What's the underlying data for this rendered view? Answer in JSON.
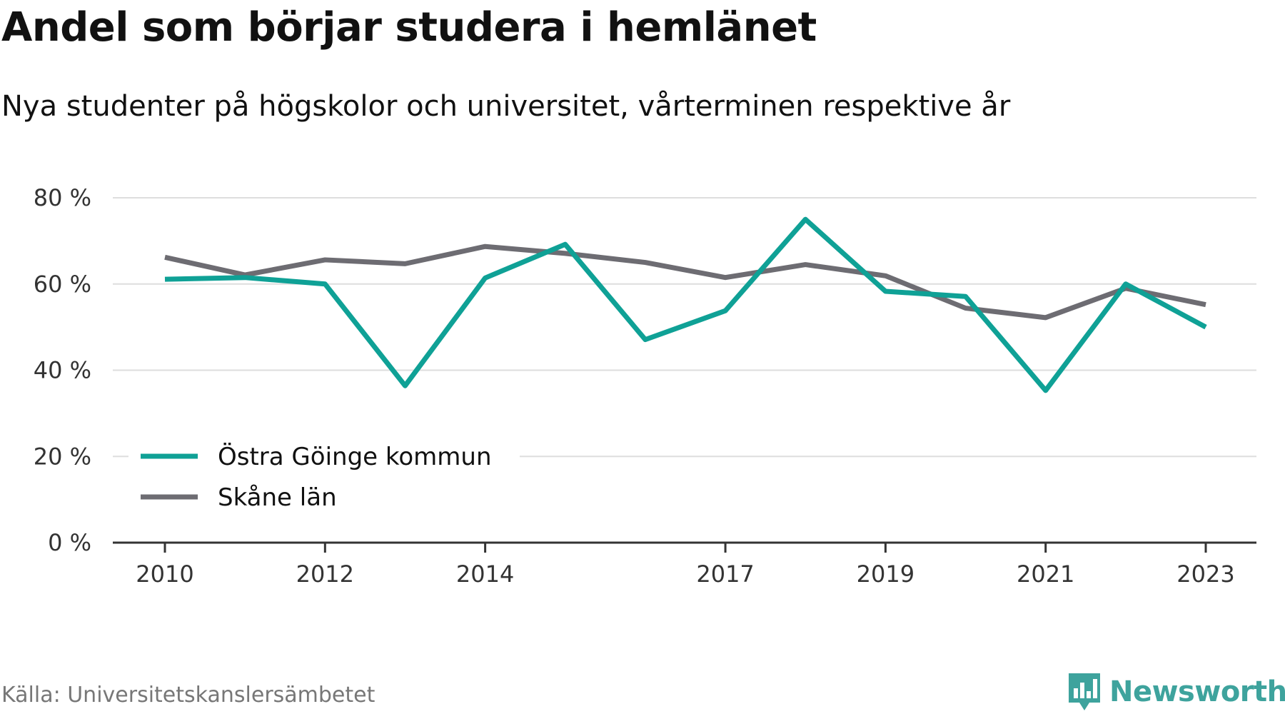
{
  "chart_data": {
    "type": "line",
    "title": "Andel som börjar studera i hemlänet",
    "subtitle": "Nya studenter på högskolor och universitet, vårterminen respektive år",
    "x": [
      2010,
      2011,
      2012,
      2013,
      2014,
      2015,
      2016,
      2017,
      2018,
      2019,
      2020,
      2021,
      2022,
      2023
    ],
    "x_tick_labels": [
      "2010",
      "2012",
      "2014",
      "2017",
      "2019",
      "2021",
      "2023"
    ],
    "y_tick_labels": [
      "80 %",
      "60 %",
      "40 %",
      "20 %",
      "0 %"
    ],
    "ylim": [
      0,
      80
    ],
    "grid": true,
    "legend_position": "bottom-left",
    "series": [
      {
        "name": "Östra Göinge kommun",
        "color": "#0fa196",
        "values": [
          61.1,
          61.5,
          60.0,
          36.4,
          61.4,
          69.2,
          47.1,
          53.8,
          75.0,
          58.3,
          57.1,
          35.3,
          60.0,
          50.0
        ]
      },
      {
        "name": "Skåne län",
        "color": "#6d6c72",
        "values": [
          66.2,
          62.1,
          65.6,
          64.7,
          68.7,
          67.1,
          65.0,
          61.5,
          64.5,
          61.9,
          54.4,
          52.2,
          59.0,
          55.2
        ]
      }
    ]
  },
  "footer": {
    "source": "Källa: Universitetskanslersämbetet",
    "brand": "Newsworthy",
    "brand_color": "#3ea39d",
    "brand_icon": "bar-chart-speech-bubble-icon"
  }
}
